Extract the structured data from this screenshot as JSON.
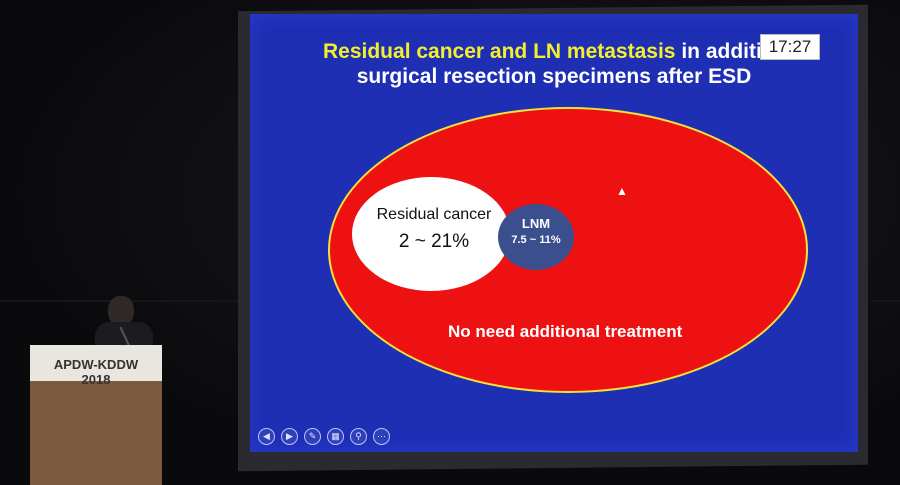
{
  "slide": {
    "title_highlight": "Residual cancer and LN metastasis",
    "title_rest": " in additional",
    "title_line2": "surgical resection specimens after ESD",
    "clock": "17:27"
  },
  "diagram": {
    "residual_label": "Residual cancer",
    "residual_value": "2 ~ 21%",
    "lnm_label": "LNM",
    "lnm_value": "7.5 ~ 11%",
    "outer_label": "No need additional treatment"
  },
  "toolbar": {
    "icons": [
      "prev-icon",
      "next-icon",
      "pen-icon",
      "slides-icon",
      "zoom-icon",
      "more-icon"
    ]
  },
  "podium": {
    "logo": "APDW-KDDW 2018"
  },
  "colors": {
    "slide_bg": "#1f2fb4",
    "title_yellow": "#f4ef2e",
    "outer_ellipse": "#ee1111",
    "outer_border": "#f2e23a",
    "lnm_circle": "#3b4e8e"
  }
}
